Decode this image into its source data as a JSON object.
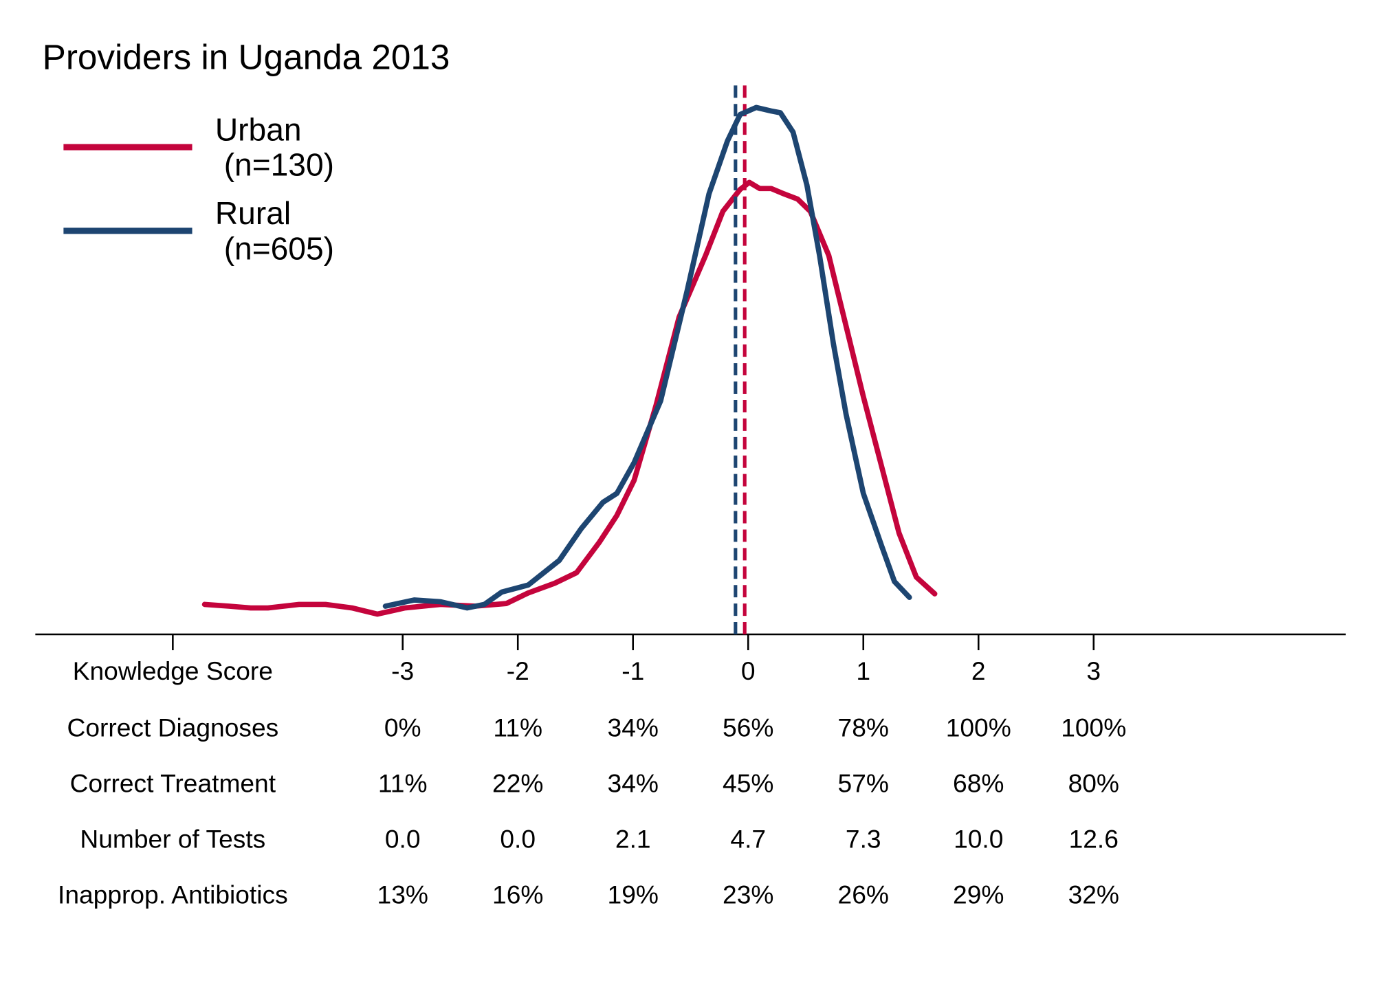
{
  "chart_data": {
    "type": "line",
    "title": "Providers in Uganda 2013",
    "x_label": "Knowledge Score",
    "xlim": [
      -6.19,
      5.19
    ],
    "xticks": [
      -3,
      -2,
      -1,
      0,
      1,
      2,
      3
    ],
    "ylim": [
      0,
      0.6
    ],
    "legend": "top-left",
    "series": [
      {
        "name": "Urban\n(n=130)",
        "color": "#c4043c",
        "mean": -0.03,
        "x": [
          -4.72,
          -4.51,
          -4.32,
          -4.17,
          -3.9,
          -3.67,
          -3.44,
          -3.22,
          -2.98,
          -2.67,
          -2.37,
          -2.1,
          -1.91,
          -1.68,
          -1.49,
          -1.29,
          -1.14,
          -0.99,
          -0.8,
          -0.6,
          -0.37,
          -0.22,
          -0.07,
          0.01,
          0.1,
          0.2,
          0.31,
          0.43,
          0.54,
          0.7,
          0.85,
          1.0,
          1.16,
          1.31,
          1.46,
          1.62
        ],
        "values": [
          0.014,
          0.012,
          0.01,
          0.01,
          0.014,
          0.014,
          0.01,
          0.003,
          0.01,
          0.014,
          0.012,
          0.015,
          0.027,
          0.038,
          0.05,
          0.085,
          0.115,
          0.155,
          0.24,
          0.34,
          0.41,
          0.46,
          0.485,
          0.493,
          0.486,
          0.486,
          0.48,
          0.474,
          0.46,
          0.41,
          0.33,
          0.25,
          0.17,
          0.095,
          0.045,
          0.026
        ]
      },
      {
        "name": "Rural\n(n=605)",
        "color": "#1d4571",
        "mean": -0.11,
        "x": [
          -3.15,
          -2.9,
          -2.67,
          -2.44,
          -2.29,
          -2.14,
          -1.91,
          -1.64,
          -1.45,
          -1.26,
          -1.14,
          -0.99,
          -0.76,
          -0.53,
          -0.34,
          -0.18,
          -0.07,
          0.07,
          0.2,
          0.28,
          0.39,
          0.51,
          0.62,
          0.74,
          0.85,
          1.0,
          1.16,
          1.27,
          1.4
        ],
        "values": [
          0.012,
          0.019,
          0.017,
          0.01,
          0.014,
          0.028,
          0.036,
          0.064,
          0.1,
          0.13,
          0.14,
          0.175,
          0.245,
          0.37,
          0.48,
          0.54,
          0.57,
          0.578,
          0.574,
          0.572,
          0.55,
          0.49,
          0.41,
          0.31,
          0.23,
          0.14,
          0.08,
          0.04,
          0.022
        ]
      }
    ],
    "table": {
      "rows": [
        {
          "label": "Correct Diagnoses",
          "values": [
            "0%",
            "11%",
            "34%",
            "56%",
            "78%",
            "100%",
            "100%"
          ]
        },
        {
          "label": "Correct Treatment",
          "values": [
            "11%",
            "22%",
            "34%",
            "45%",
            "57%",
            "68%",
            "80%"
          ]
        },
        {
          "label": "Number of Tests",
          "values": [
            "0.0",
            "0.0",
            "2.1",
            "4.7",
            "7.3",
            "10.0",
            "12.6"
          ]
        },
        {
          "label": "Inapprop. Antibiotics",
          "values": [
            "13%",
            "16%",
            "19%",
            "23%",
            "26%",
            "29%",
            "32%"
          ]
        }
      ]
    }
  }
}
